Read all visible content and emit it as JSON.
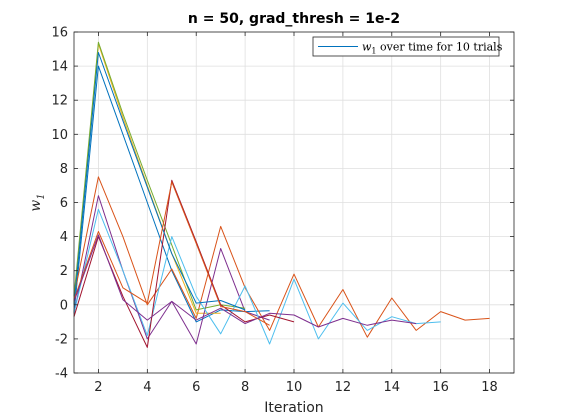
{
  "chart_data": {
    "type": "line",
    "title": "n = 50, grad_thresh = 1e-2",
    "xlabel": "Iteration",
    "ylabel": "w",
    "ylabel_subscript": "1",
    "xlim": [
      1,
      19
    ],
    "ylim": [
      -4,
      16
    ],
    "xticks": [
      2,
      4,
      6,
      8,
      10,
      12,
      14,
      16,
      18
    ],
    "yticks": [
      -4,
      -2,
      0,
      2,
      4,
      6,
      8,
      10,
      12,
      14,
      16
    ],
    "grid": true,
    "legend": {
      "position": "top-right",
      "label": "w",
      "label_subscript": "1",
      "label_rest": " over time for 10 trials",
      "color": "#0072BD"
    },
    "series": [
      {
        "color": "#0072BD",
        "x": [
          1,
          2,
          3,
          4,
          5,
          6,
          7,
          8,
          9
        ],
        "y": [
          -0.5,
          14.0,
          10.0,
          6.0,
          2.0,
          -1.0,
          -0.3,
          -0.4,
          -0.35
        ]
      },
      {
        "color": "#D95319",
        "x": [
          1,
          2,
          3,
          4,
          5,
          6,
          7,
          8,
          9,
          10,
          11,
          12,
          13,
          14,
          15,
          16,
          17,
          18
        ],
        "y": [
          0.5,
          7.5,
          4.0,
          0.0,
          2.1,
          -0.8,
          4.6,
          1.0,
          -1.5,
          1.8,
          -1.3,
          0.9,
          -1.9,
          0.4,
          -1.5,
          -0.4,
          -0.9,
          -0.8
        ]
      },
      {
        "color": "#EDB120",
        "x": [
          1,
          2,
          3,
          4,
          5,
          6,
          7
        ],
        "y": [
          0.0,
          15.3,
          11.0,
          7.0,
          3.0,
          -0.5,
          -0.5
        ]
      },
      {
        "color": "#7E2F8E",
        "x": [
          1,
          2,
          3,
          4,
          5,
          6,
          7,
          8,
          9
        ],
        "y": [
          -0.5,
          6.4,
          2.0,
          -2.0,
          0.2,
          -2.3,
          3.3,
          -0.4,
          -0.9
        ]
      },
      {
        "color": "#77AC30",
        "x": [
          1,
          2,
          3,
          4,
          5,
          6,
          7,
          8
        ],
        "y": [
          0.5,
          15.4,
          11.2,
          7.3,
          3.5,
          -0.3,
          0.0,
          -0.2
        ]
      },
      {
        "color": "#4DBEEE",
        "x": [
          1,
          2,
          3,
          4,
          5,
          6,
          7,
          8,
          9,
          10,
          11,
          12,
          13,
          14,
          15,
          16
        ],
        "y": [
          -0.5,
          5.6,
          2.0,
          -1.8,
          4.0,
          0.5,
          -1.7,
          1.1,
          -2.3,
          1.5,
          -2.0,
          0.1,
          -1.5,
          -0.7,
          -1.1,
          -1.0
        ]
      },
      {
        "color": "#A2142F",
        "x": [
          1,
          2,
          3,
          4,
          5,
          6,
          7,
          8,
          9,
          10
        ],
        "y": [
          -0.7,
          4.0,
          0.5,
          -2.5,
          7.3,
          3.7,
          0.0,
          -1.0,
          -0.6,
          -1.0
        ]
      },
      {
        "color": "#0072BD",
        "x": [
          1,
          2,
          3,
          4,
          5,
          6,
          7,
          8
        ],
        "y": [
          0.0,
          14.8,
          10.8,
          6.9,
          3.0,
          0.1,
          0.25,
          -0.3
        ]
      },
      {
        "color": "#D95319",
        "x": [
          1,
          2,
          3,
          4,
          5,
          6,
          7,
          8,
          9
        ],
        "y": [
          0.3,
          4.3,
          1.0,
          0.1,
          7.2,
          3.6,
          -0.1,
          -0.4,
          -1.2
        ]
      },
      {
        "color": "#7E2F8E",
        "x": [
          1,
          2,
          3,
          4,
          5,
          6,
          7,
          8,
          9,
          10,
          11,
          12,
          13,
          14,
          15
        ],
        "y": [
          0.2,
          4.1,
          0.3,
          -0.9,
          0.2,
          -0.9,
          -0.2,
          -1.1,
          -0.5,
          -0.6,
          -1.3,
          -0.8,
          -1.2,
          -0.9,
          -1.1
        ]
      }
    ]
  }
}
